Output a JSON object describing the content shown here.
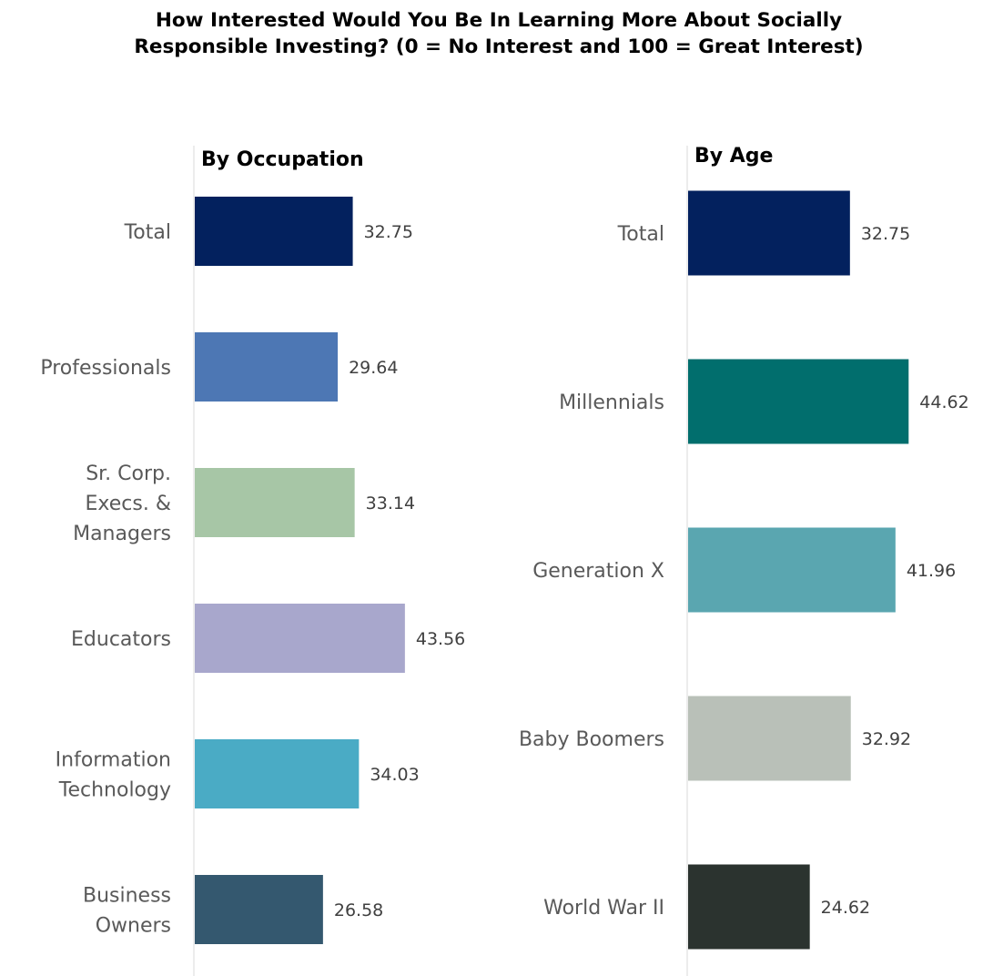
{
  "title_lines": [
    "How Interested Would You Be In Learning More About Socially",
    "Responsible Investing?  (0 = No Interest and 100 = Great Interest)"
  ],
  "chart_data": [
    {
      "type": "bar",
      "orientation": "horizontal",
      "title": "By Occupation",
      "categories": [
        [
          "Total"
        ],
        [
          "Professionals"
        ],
        [
          "Sr. Corp.",
          "Execs. &",
          "Managers"
        ],
        [
          "Educators"
        ],
        [
          "Information",
          "Technology"
        ],
        [
          "Business",
          "Owners"
        ]
      ],
      "values": [
        32.75,
        29.64,
        33.14,
        43.56,
        34.03,
        26.58
      ],
      "value_labels": [
        "32.75",
        "29.64",
        "33.14",
        "43.56",
        "34.03",
        "26.58"
      ],
      "colors": [
        "#03215e",
        "#4d77b4",
        "#a7c6a6",
        "#a8a7cc",
        "#4aabc5",
        "#34586f"
      ],
      "xlim": [
        0,
        100
      ],
      "grid": false,
      "legend": "none"
    },
    {
      "type": "bar",
      "orientation": "horizontal",
      "title": "By Age",
      "categories": [
        [
          "Total"
        ],
        [
          "Millennials"
        ],
        [
          "Generation X"
        ],
        [
          "Baby Boomers"
        ],
        [
          "World War II"
        ]
      ],
      "values": [
        32.75,
        44.62,
        41.96,
        32.92,
        24.62
      ],
      "value_labels": [
        "32.75",
        "44.62",
        "41.96",
        "32.92",
        "24.62"
      ],
      "colors": [
        "#03215e",
        "#016e6d",
        "#5aa6b0",
        "#b9c0b8",
        "#2b332f"
      ],
      "xlim": [
        0,
        100
      ],
      "grid": false,
      "legend": "none"
    }
  ]
}
